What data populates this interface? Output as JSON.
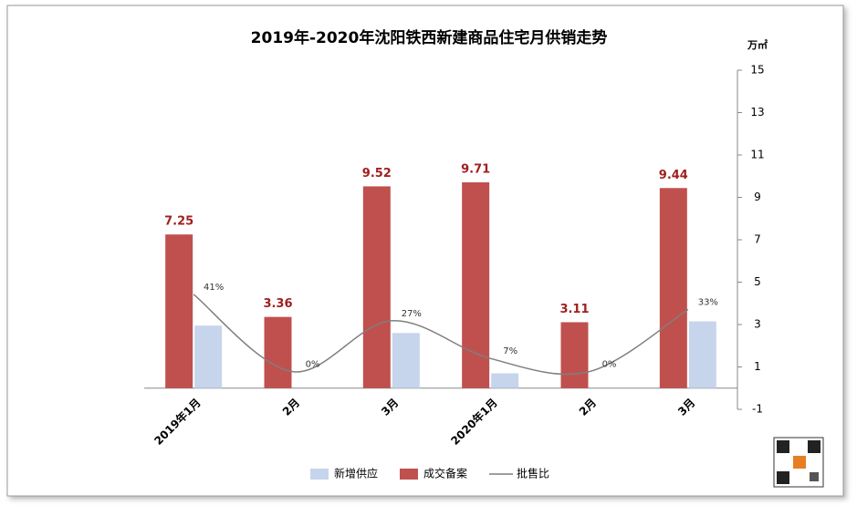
{
  "chart_data": {
    "type": "bar-line",
    "title": "2019年-2020年沈阳铁西新建商品住宅月供销走势",
    "y_unit": "万㎡",
    "categories": [
      "2019年1月",
      "2月",
      "3月",
      "2020年1月",
      "2月",
      "3月"
    ],
    "series": [
      {
        "name": "新增供应",
        "type": "bar",
        "color": "#c6d5ec",
        "values": [
          2.95,
          0,
          2.6,
          0.7,
          0,
          3.15
        ]
      },
      {
        "name": "成交备案",
        "type": "bar",
        "color": "#c0504d",
        "values": [
          7.25,
          3.36,
          9.52,
          9.71,
          3.11,
          9.44
        ]
      },
      {
        "name": "批售比",
        "type": "line",
        "axis": "y2",
        "color": "#7f7f7f",
        "values": [
          41,
          0,
          27,
          7,
          0,
          33
        ],
        "value_labels": [
          "41%",
          "0%",
          "27%",
          "7%",
          "0%",
          "33%"
        ]
      }
    ],
    "ylim": [
      -1,
      15
    ],
    "yticks": [
      -1,
      1,
      3,
      5,
      7,
      9,
      11,
      13,
      15
    ],
    "y2lim": [
      -20,
      160
    ]
  }
}
